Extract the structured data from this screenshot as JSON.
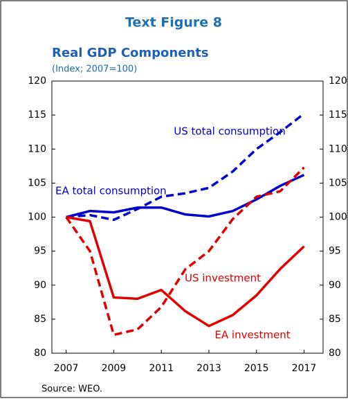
{
  "chart_data": {
    "type": "line",
    "title": "Text Figure 8",
    "subtitle": "Real GDP Components",
    "ylabel": "(Index; 2007=100)",
    "source": "Source: WEO.",
    "x": [
      2007,
      2008,
      2009,
      2010,
      2011,
      2012,
      2013,
      2014,
      2015,
      2016,
      2017
    ],
    "series": [
      {
        "name": "US total consumption",
        "color": "#0000cc",
        "dashed": true,
        "values": [
          100,
          100.3,
          99.6,
          101.2,
          103,
          103.5,
          104.3,
          106.7,
          110,
          112.5,
          115.2
        ]
      },
      {
        "name": "EA total consumption",
        "color": "#0000cc",
        "dashed": false,
        "values": [
          100,
          100.9,
          100.7,
          101.4,
          101.4,
          100.4,
          100.1,
          100.9,
          102.6,
          104.6,
          106.2
        ]
      },
      {
        "name": "US investment",
        "color": "#e00000",
        "dashed": true,
        "values": [
          100,
          95,
          82.7,
          83.5,
          86.8,
          92.3,
          95,
          99.7,
          103,
          103.8,
          107.3
        ]
      },
      {
        "name": "EA investment",
        "color": "#e00000",
        "dashed": false,
        "values": [
          100,
          99.4,
          88.2,
          88,
          89.3,
          86.2,
          84,
          85.6,
          88.5,
          92.4,
          95.7
        ]
      }
    ],
    "xlim": [
      2006.4,
      2017.8
    ],
    "xticks": [
      2007,
      2009,
      2011,
      2013,
      2015,
      2017
    ],
    "ylim": [
      80,
      120
    ],
    "yticks": [
      80,
      85,
      90,
      95,
      100,
      105,
      110,
      115,
      120
    ],
    "y2lim": [
      80,
      120
    ],
    "y2ticks": [
      80,
      85,
      90,
      95,
      100,
      105,
      110,
      115,
      120
    ]
  }
}
